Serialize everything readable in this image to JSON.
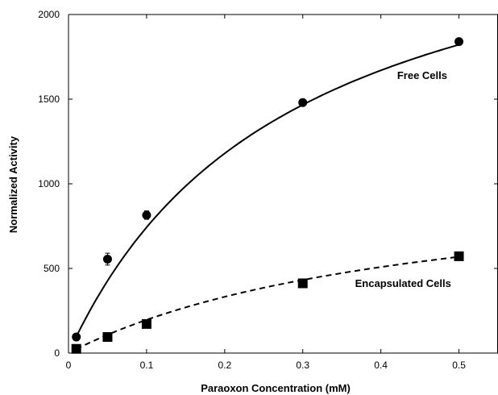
{
  "chart_data": {
    "type": "scatter",
    "xlabel": "Paraoxon Concentration (mM)",
    "ylabel": "Normalized Activity",
    "xlim": [
      0,
      0.55
    ],
    "ylim": [
      0,
      2000
    ],
    "xticks": [
      0,
      0.1,
      0.2,
      0.3,
      0.4,
      0.5
    ],
    "xtick_labels": [
      "0",
      "0.1",
      "0.2",
      "0.3",
      "0.4",
      "0.5"
    ],
    "yticks": [
      0,
      500,
      1000,
      1500,
      2000
    ],
    "ytick_labels": [
      "0",
      "500",
      "1000",
      "1500",
      "2000"
    ],
    "grid": false,
    "series": [
      {
        "name": "Free Cells",
        "marker": "circle",
        "line_style": "solid",
        "color": "#000000",
        "x": [
          0.01,
          0.05,
          0.1,
          0.3,
          0.5
        ],
        "y": [
          95,
          555,
          815,
          1480,
          1840
        ],
        "y_err": [
          0,
          35,
          25,
          0,
          0
        ],
        "fit_curve": {
          "form": "michaelis-menten",
          "vmax": 2860,
          "km": 0.285,
          "x_start": 0.01,
          "x_end": 0.5
        }
      },
      {
        "name": "Encapsulated Cells",
        "marker": "square",
        "line_style": "dashed",
        "color": "#000000",
        "x": [
          0.01,
          0.05,
          0.1,
          0.3,
          0.5
        ],
        "y": [
          25,
          95,
          172,
          412,
          572
        ],
        "y_err": [
          0,
          0,
          0,
          0,
          0
        ],
        "fit_curve": {
          "form": "michaelis-menten",
          "vmax": 1080,
          "km": 0.45,
          "x_start": 0.01,
          "x_end": 0.5
        }
      }
    ],
    "annotations": [
      {
        "text": "Free Cells",
        "x": 0.485,
        "y": 1620
      },
      {
        "text": "Encapsulated Cells",
        "x": 0.49,
        "y": 390
      }
    ]
  }
}
